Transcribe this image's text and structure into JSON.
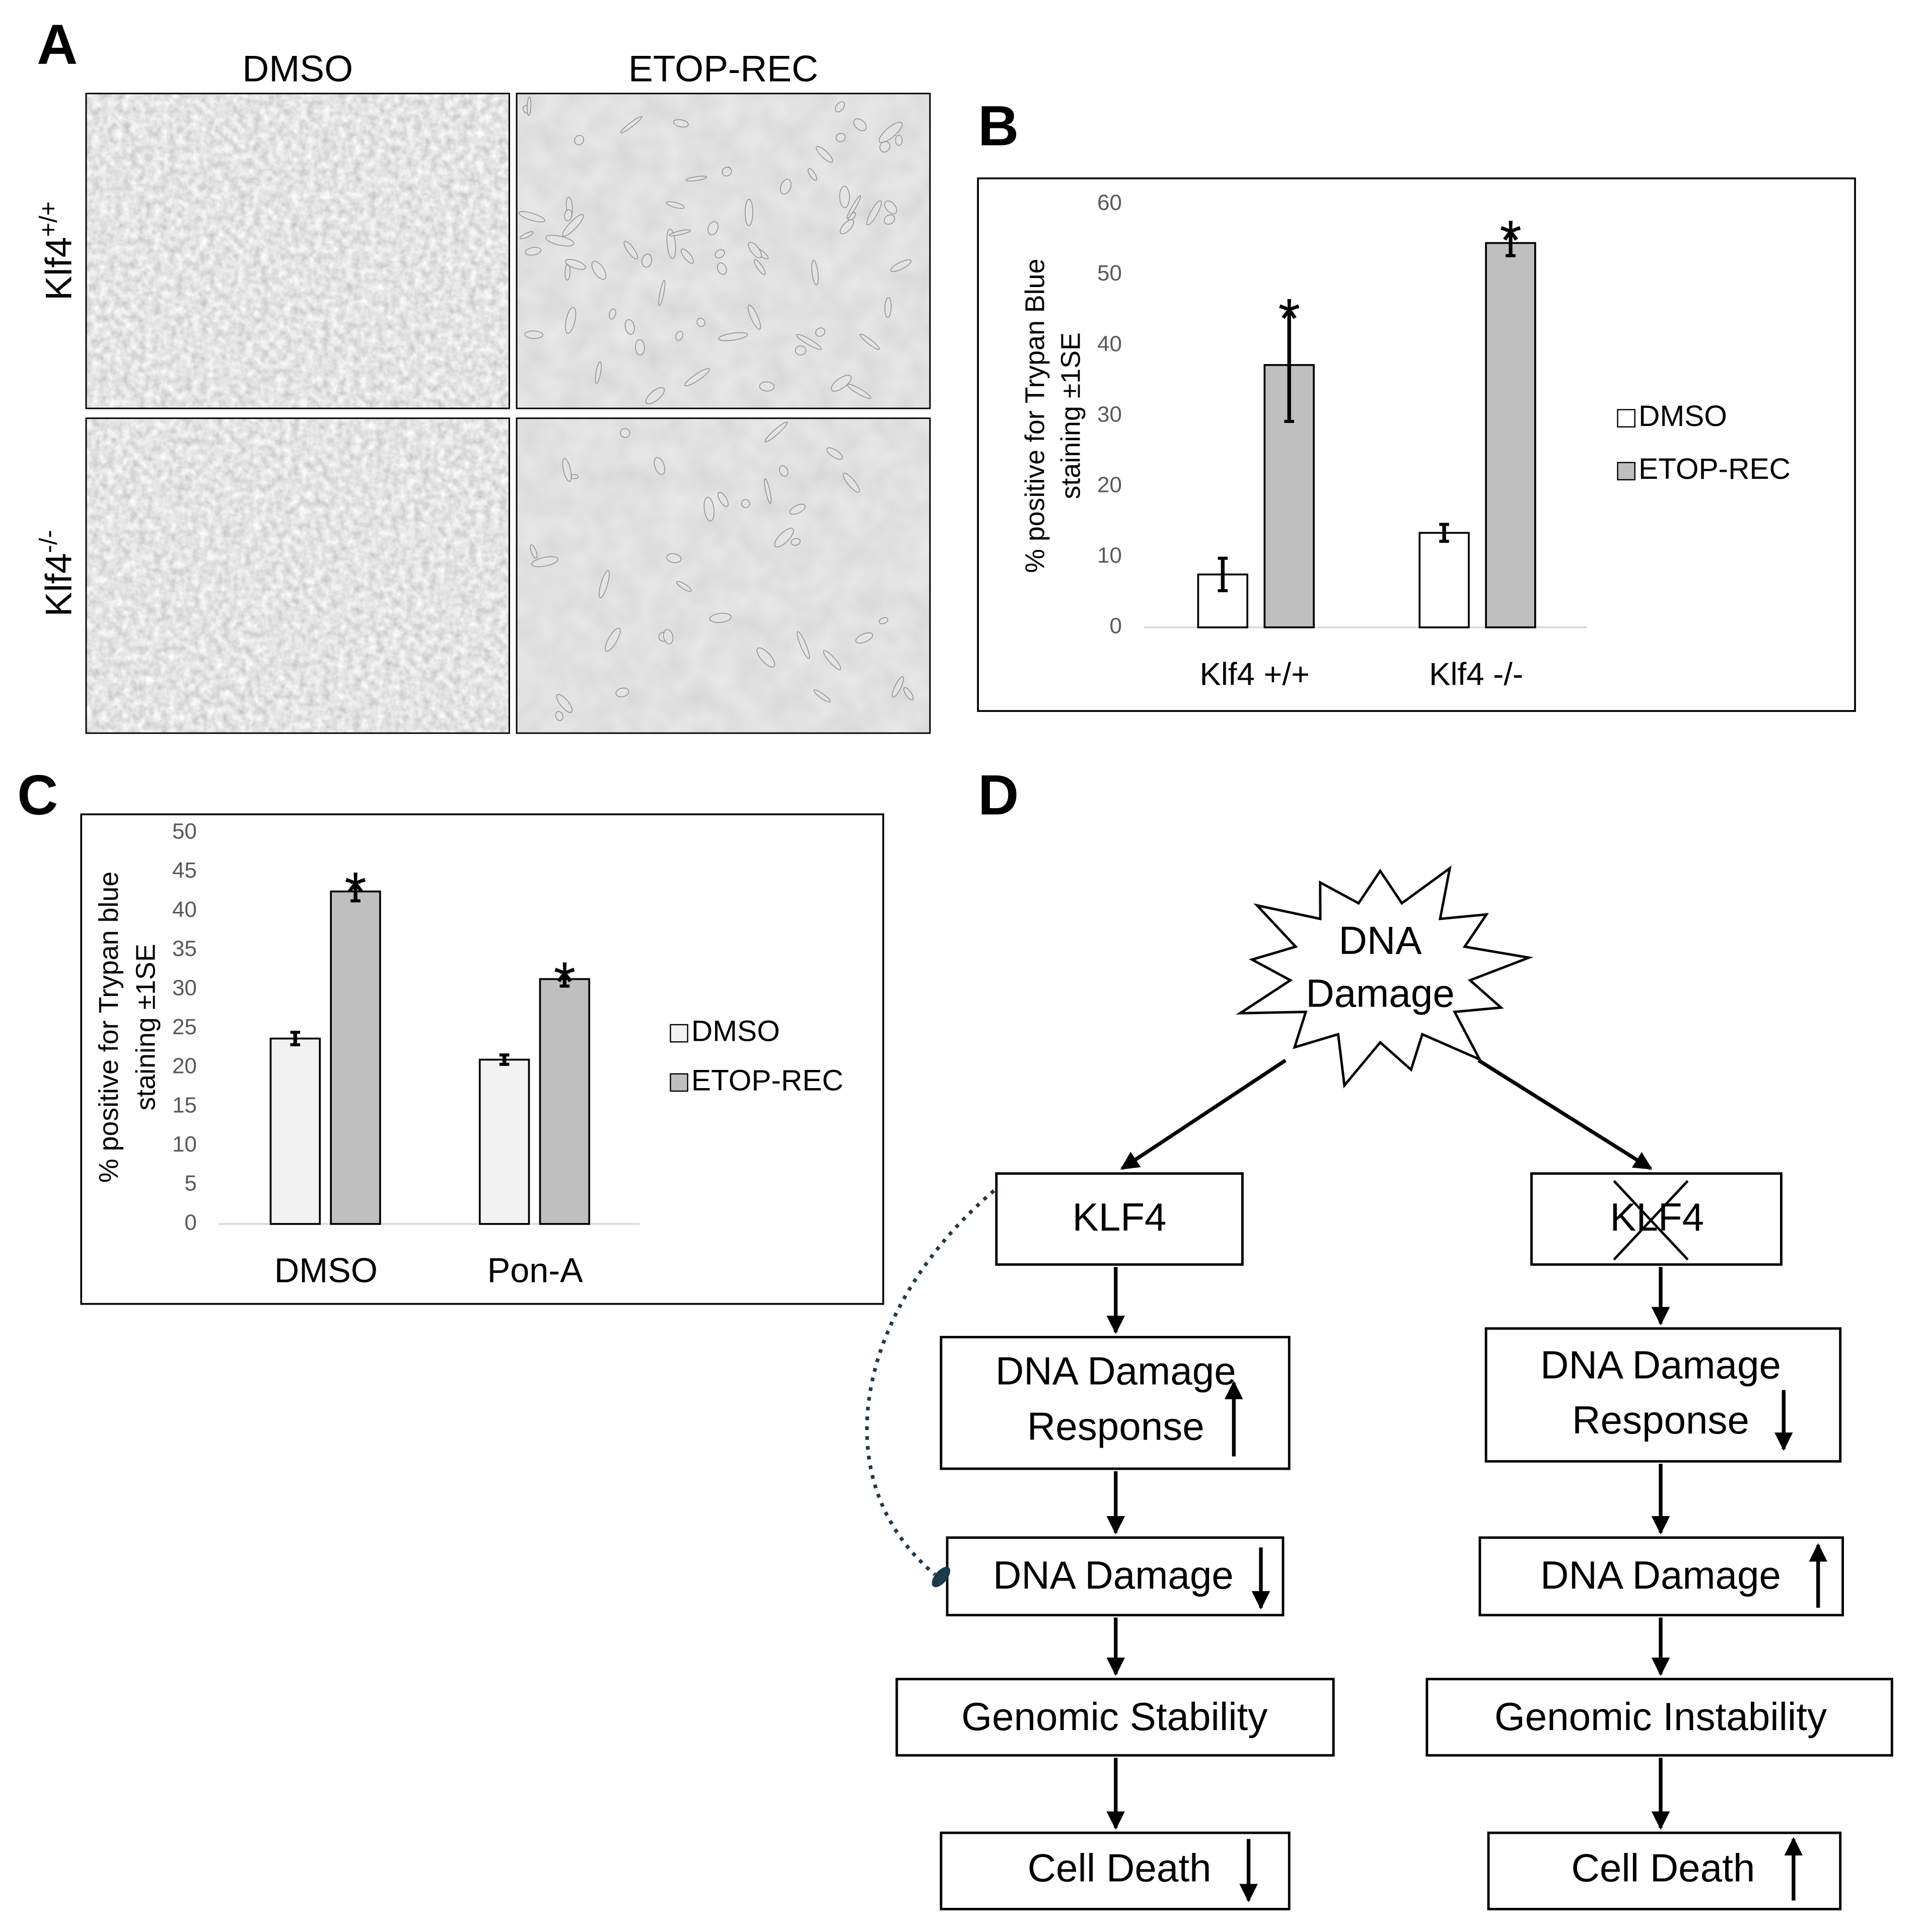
{
  "panel_labels": [
    "A",
    "B",
    "C",
    "D"
  ],
  "panel_a": {
    "columns": [
      "DMSO",
      "ETOP-REC"
    ],
    "rows": [
      {
        "name": "Klf4",
        "superscript": "+/+"
      },
      {
        "name": "Klf4",
        "superscript": "-/-"
      }
    ]
  },
  "chart_data": [
    {
      "type": "bar",
      "y_label": [
        "% positive for Trypan Blue",
        "staining ±1SE"
      ],
      "categories": [
        "Klf4 +/+",
        "Klf4 -/-"
      ],
      "series": [
        {
          "name": "DMSO",
          "color": "#ffffff",
          "values": [
            7.5,
            13.4
          ],
          "errors": [
            2.3,
            1.2
          ]
        },
        {
          "name": "ETOP-REC",
          "color": "#bfbfbf",
          "values": [
            37.2,
            54.5
          ],
          "errors": [
            8,
            1.8
          ],
          "significance": [
            "*",
            "*"
          ]
        }
      ],
      "ylim": [
        0,
        60
      ],
      "yticks": [
        0,
        10,
        20,
        30,
        40,
        50,
        60
      ],
      "legend": "right"
    },
    {
      "type": "bar",
      "y_label": [
        "% positive for Trypan blue",
        "staining  ±1SE"
      ],
      "categories": [
        "DMSO",
        "Pon-A"
      ],
      "series": [
        {
          "name": "DMSO",
          "color": "#f2f2f2",
          "values": [
            23.7,
            21
          ],
          "errors": [
            0.8,
            0.6
          ]
        },
        {
          "name": "ETOP-REC",
          "color": "#bfbfbf",
          "values": [
            42.5,
            31.3
          ],
          "errors": [
            1.2,
            0.9
          ],
          "significance": [
            "*",
            "*"
          ]
        }
      ],
      "ylim": [
        0,
        50
      ],
      "yticks": [
        0,
        5,
        10,
        15,
        20,
        25,
        30,
        35,
        40,
        45,
        50
      ],
      "legend": "right"
    }
  ],
  "diagram": {
    "trigger": {
      "lines": [
        "DNA",
        "Damage"
      ]
    },
    "left": {
      "gene": "KLF4",
      "response": [
        "DNA Damage",
        "Response"
      ],
      "damage": "DNA Damage",
      "genome": "Genomic Stability",
      "death": "Cell Death"
    },
    "right": {
      "gene": "KLF4",
      "response": [
        "DNA Damage",
        "Response"
      ],
      "damage": "DNA Damage",
      "genome": "Genomic Instability",
      "death": "Cell Death"
    }
  }
}
